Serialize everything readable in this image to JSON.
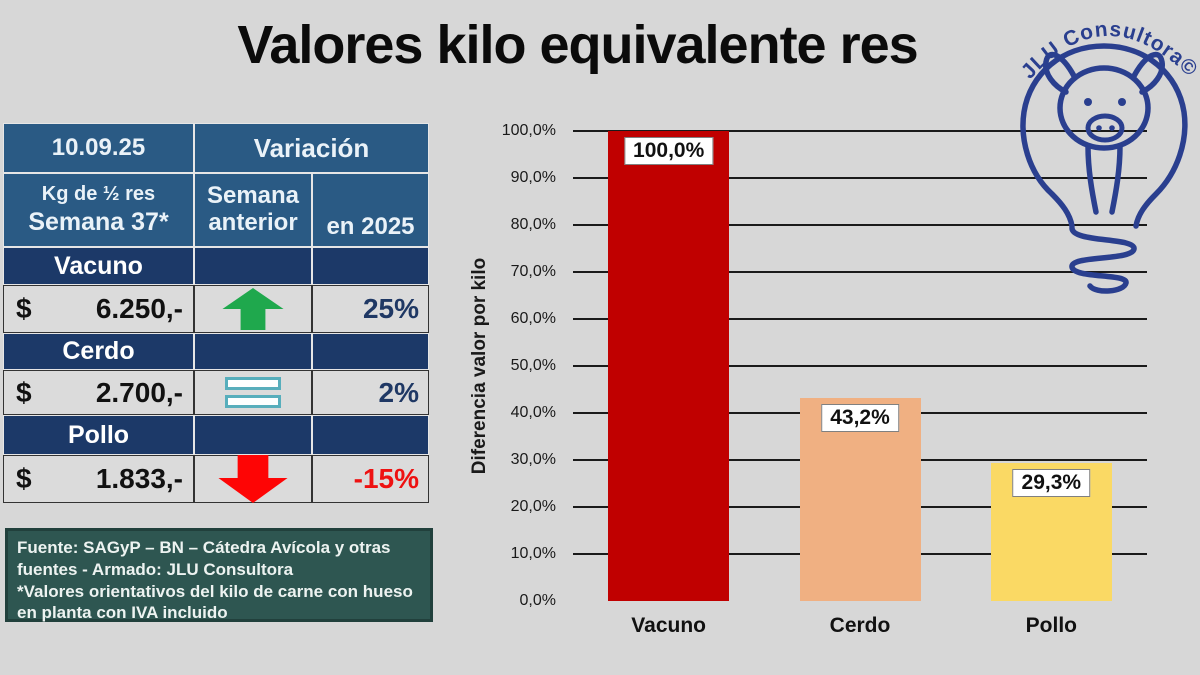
{
  "title": "Valores kilo equivalente res",
  "logo": {
    "text": "JLU Consultora©"
  },
  "table": {
    "date": "10.09.25",
    "variation_header": "Variación",
    "week_label_line1": "Kg de ½ res",
    "week_label_line2": "Semana 37*",
    "prev_week_header": "Semana anterior",
    "ytd_header": "en 2025",
    "currency_symbol": "$",
    "rows": [
      {
        "species": "Vacuno",
        "price": "6.250,-",
        "trend_icon": "up-arrow",
        "variation_2025": "25%"
      },
      {
        "species": "Cerdo",
        "price": "2.700,-",
        "trend_icon": "equals",
        "variation_2025": "2%"
      },
      {
        "species": "Pollo",
        "price": "1.833,-",
        "trend_icon": "down-arrow",
        "variation_2025": "-15%"
      }
    ]
  },
  "source_note": {
    "line1": "Fuente: SAGyP – BN – Cátedra Avícola y otras fuentes - Armado: JLU Consultora",
    "line2": "*Valores orientativos del kilo de carne con hueso en planta con IVA incluido"
  },
  "chart_data": {
    "type": "bar",
    "categories": [
      "Vacuno",
      "Cerdo",
      "Pollo"
    ],
    "values": [
      100.0,
      43.2,
      29.3
    ],
    "data_labels": [
      "100,0%",
      "43,2%",
      "29,3%"
    ],
    "bar_colors": [
      "#C00000",
      "#F0B082",
      "#FAD964"
    ],
    "title": "",
    "xlabel": "",
    "ylabel": "Diferencia valor por kilo",
    "ylim": [
      0,
      100
    ],
    "ytick_labels": [
      "0,0%",
      "10,0%",
      "20,0%",
      "30,0%",
      "40,0%",
      "50,0%",
      "60,0%",
      "70,0%",
      "80,0%",
      "90,0%",
      "100,0%"
    ],
    "grid": true,
    "legend": false
  },
  "colors": {
    "background": "#D7D7D7",
    "table_header_blue": "#2A5A84",
    "table_species_navy": "#1C3968",
    "value_cell_gray": "#DBDBDB",
    "positive_green": "#1FA84D",
    "neutral_teal": "#57AEBC",
    "negative_red": "#EE1111",
    "pct_blue": "#1F3864",
    "source_box_teal": "#2E5651",
    "logo_navy": "#2A3F8F",
    "bar_vacuno_red": "#C00000",
    "bar_cerdo_orange": "#F0B082",
    "bar_pollo_yellow": "#FAD964"
  }
}
